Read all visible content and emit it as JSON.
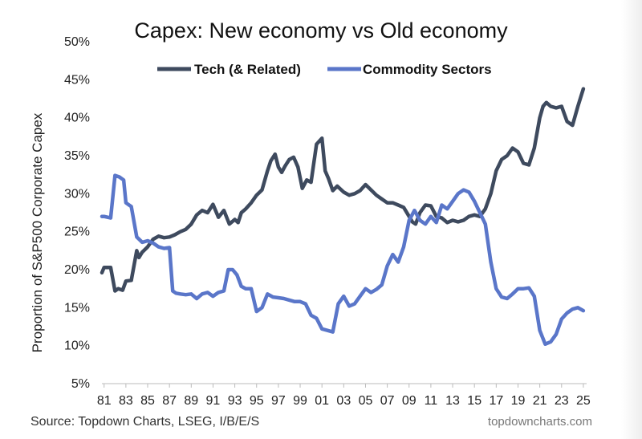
{
  "chart_data": {
    "type": "line",
    "title": "Capex: New economy vs Old economy",
    "ylabel": "Proportion of S&P500 Corporate Capex",
    "xlabel": "",
    "ylim": [
      5,
      50
    ],
    "y_ticks": [
      "5%",
      "10%",
      "15%",
      "20%",
      "25%",
      "30%",
      "35%",
      "40%",
      "45%",
      "50%"
    ],
    "x_tick_labels": [
      "81",
      "83",
      "85",
      "87",
      "89",
      "91",
      "93",
      "95",
      "97",
      "99",
      "01",
      "03",
      "05",
      "07",
      "09",
      "11",
      "13",
      "15",
      "17",
      "19",
      "21",
      "23",
      "25"
    ],
    "x_tick_years": [
      1981,
      1983,
      1985,
      1987,
      1989,
      1991,
      1993,
      1995,
      1997,
      1999,
      2001,
      2003,
      2005,
      2007,
      2009,
      2011,
      2013,
      2015,
      2017,
      2019,
      2021,
      2023,
      2025
    ],
    "xlim": [
      1980.8,
      2025.3
    ],
    "legend_position": "top",
    "grid": false,
    "series": [
      {
        "name": "Tech (& Related)",
        "color": "#3e4a5e",
        "x": [
          1980.8,
          1981,
          1981.6,
          1982,
          1982.3,
          1982.7,
          1983,
          1983.5,
          1984,
          1984.2,
          1984.5,
          1985,
          1985.5,
          1986,
          1986.5,
          1987,
          1987.5,
          1988,
          1988.5,
          1989,
          1989.5,
          1990,
          1990.5,
          1991,
          1991.5,
          1992,
          1992.5,
          1993,
          1993.3,
          1993.6,
          1994,
          1994.5,
          1995,
          1995.5,
          1996,
          1996.3,
          1996.7,
          1997,
          1997.3,
          1997.6,
          1998,
          1998.4,
          1998.8,
          1999.2,
          1999.6,
          2000,
          2000.5,
          2001,
          2001.3,
          2001.6,
          2002,
          2002.4,
          2003,
          2003.5,
          2004,
          2004.5,
          2005,
          2005.5,
          2006,
          2006.5,
          2007,
          2007.5,
          2008,
          2008.5,
          2009,
          2009.3,
          2009.6,
          2010,
          2010.5,
          2011,
          2011.5,
          2012,
          2012.5,
          2013,
          2013.5,
          2014,
          2014.5,
          2015,
          2015.5,
          2016,
          2016.5,
          2017,
          2017.5,
          2018,
          2018.5,
          2019,
          2019.5,
          2020,
          2020.5,
          2021,
          2021.3,
          2021.6,
          2022,
          2022.5,
          2023,
          2023.5,
          2024,
          2024.5,
          2025
        ],
        "values": [
          19.6,
          20.3,
          20.3,
          17.2,
          17.5,
          17.3,
          18.5,
          18.6,
          22.5,
          21.6,
          22.3,
          23.0,
          24.0,
          24.4,
          24.2,
          24.3,
          24.6,
          25.0,
          25.3,
          26.0,
          27.2,
          27.8,
          27.5,
          28.6,
          26.9,
          27.8,
          26.0,
          26.6,
          26.2,
          27.5,
          28.0,
          28.8,
          29.8,
          30.5,
          33.0,
          34.3,
          35.2,
          33.5,
          32.8,
          33.6,
          34.5,
          34.8,
          33.5,
          30.7,
          31.8,
          31.5,
          36.5,
          37.3,
          33.0,
          32.0,
          30.4,
          31.0,
          30.2,
          29.8,
          30.0,
          30.4,
          31.2,
          30.5,
          29.8,
          29.3,
          28.8,
          28.8,
          28.5,
          28.2,
          27.0,
          26.3,
          26.0,
          27.5,
          28.5,
          28.4,
          27.0,
          26.8,
          26.2,
          26.5,
          26.3,
          26.5,
          27.0,
          27.2,
          27.0,
          28.0,
          30.0,
          33.0,
          34.5,
          35.0,
          36.0,
          35.5,
          34.0,
          33.8,
          36.0,
          40.0,
          41.5,
          42.0,
          41.5,
          41.3,
          41.5,
          39.5,
          39.0,
          41.5,
          43.8
        ]
      },
      {
        "name": "Commodity Sectors",
        "color": "#5a76c9",
        "x": [
          1980.8,
          1981,
          1981.6,
          1982,
          1982.4,
          1982.8,
          1983,
          1983.5,
          1984,
          1984.5,
          1985,
          1985.5,
          1986,
          1986.5,
          1987,
          1987.3,
          1987.6,
          1988,
          1988.5,
          1989,
          1989.5,
          1990,
          1990.5,
          1991,
          1991.5,
          1992,
          1992.4,
          1992.8,
          1993.2,
          1993.6,
          1994,
          1994.5,
          1995,
          1995.5,
          1996,
          1996.5,
          1997,
          1997.5,
          1998,
          1998.5,
          1999,
          1999.5,
          2000,
          2000.5,
          2001,
          2001.5,
          2002,
          2002.5,
          2003,
          2003.5,
          2004,
          2004.5,
          2005,
          2005.5,
          2006,
          2006.5,
          2007,
          2007.5,
          2008,
          2008.5,
          2009,
          2009.5,
          2010,
          2010.5,
          2011,
          2011.5,
          2012,
          2012.5,
          2013,
          2013.5,
          2014,
          2014.5,
          2015,
          2015.5,
          2016,
          2016.5,
          2017,
          2017.5,
          2018,
          2018.5,
          2019,
          2019.5,
          2020,
          2020.5,
          2021,
          2021.5,
          2022,
          2022.5,
          2023,
          2023.5,
          2024,
          2024.5,
          2025
        ],
        "values": [
          27.0,
          27.0,
          26.8,
          32.4,
          32.2,
          31.8,
          28.8,
          28.3,
          24.3,
          23.6,
          23.8,
          23.5,
          23.0,
          22.8,
          22.9,
          17.2,
          16.9,
          16.8,
          16.7,
          16.8,
          16.2,
          16.8,
          17.0,
          16.5,
          17.0,
          17.2,
          20.0,
          20.0,
          19.3,
          17.8,
          17.5,
          17.5,
          14.5,
          15.0,
          16.8,
          16.4,
          16.3,
          16.2,
          16.0,
          15.8,
          15.8,
          15.5,
          14.0,
          13.6,
          12.2,
          12.0,
          11.8,
          15.5,
          16.5,
          15.2,
          15.5,
          16.5,
          17.5,
          17.0,
          17.4,
          18.0,
          20.5,
          22.0,
          21.0,
          23.0,
          26.5,
          27.8,
          26.5,
          26.0,
          27.0,
          26.2,
          28.5,
          28.0,
          29.0,
          30.0,
          30.5,
          30.2,
          29.0,
          27.5,
          26.0,
          21.0,
          17.5,
          16.4,
          16.2,
          16.8,
          17.5,
          17.5,
          17.6,
          16.5,
          12.0,
          10.2,
          10.5,
          11.5,
          13.5,
          14.3,
          14.8,
          15.0,
          14.6
        ]
      }
    ]
  },
  "source_text": "Source: Topdown Charts, LSEG, I/B/E/S",
  "watermark_text": "topdowncharts.com"
}
